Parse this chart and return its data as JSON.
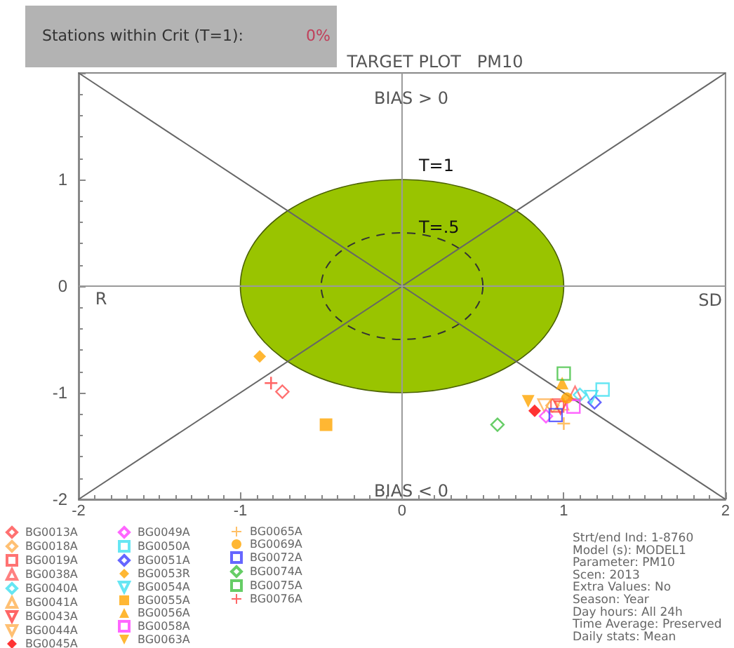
{
  "chart_data": {
    "type": "scatter",
    "title": "TARGET PLOT   PM10",
    "xlim": [
      -2,
      2
    ],
    "xticks": [
      -2,
      -1,
      0,
      1,
      2
    ],
    "ylim": [
      -2,
      2
    ],
    "yticks": [
      -2,
      -1,
      0,
      1,
      {
        "value": 2,
        "label": null
      }
    ],
    "grid": false,
    "legend": "bottom left",
    "annotations": [
      "Stations within Crit (T=1):",
      "0%",
      "BIAS > 0",
      "BIAS < 0",
      "R",
      "SD",
      {
        "text": "T=1",
        "x": 0,
        "y": 1
      },
      {
        "text": "T=.5",
        "x": 0,
        "y": 0.5
      },
      "Strt/end Ind: 1-8760",
      "Model (s): MODEL1",
      "Parameter: PM10",
      "Scen: 2013",
      "Extra Values: No",
      "Season: Year",
      "Day hours: All 24h",
      "Time Average: Preserved",
      "Daily stats: Mean"
    ],
    "series": [
      {
        "type": "line",
        "color": "#666666",
        "marker": "none",
        "x": [
          -2,
          2
        ],
        "values": [
          -2,
          2
        ]
      },
      {
        "type": "line",
        "color": "#666666",
        "marker": "none",
        "x": [
          -2,
          2
        ],
        "values": [
          2,
          -2
        ]
      },
      {
        "type": "line",
        "color": "#9a9a9a",
        "marker": "none",
        "x": [
          0,
          0
        ],
        "values": [
          -2,
          2
        ]
      },
      {
        "type": "line",
        "color": "#9a9a9a",
        "marker": "none",
        "x": [
          -2,
          2
        ],
        "values": [
          0,
          0
        ]
      },
      {
        "name": "BG0013A",
        "color": "#ff4d4d",
        "marker": "diamond",
        "x": [
          -0.74
        ],
        "values": [
          -0.99
        ]
      },
      {
        "name": "BG0018A",
        "color": "#ffb050",
        "marker": "diamond",
        "x": [
          0.93
        ],
        "values": [
          -1.12
        ]
      },
      {
        "name": "BG0019A",
        "color": "#ff5050",
        "marker": "square",
        "x": [
          0.96
        ],
        "values": [
          -1.12
        ]
      },
      {
        "name": "BG0038A",
        "color": "#ff6060",
        "marker": "triangle",
        "x": [
          1.07
        ],
        "values": [
          -1.0
        ]
      },
      {
        "name": "BG0040A",
        "color": "#40e0f0",
        "marker": "diamond",
        "x": [
          1.1
        ],
        "values": [
          -1.02
        ]
      },
      {
        "name": "BG0041A",
        "color": "#ffb050",
        "marker": "triangle",
        "x": [
          0.99
        ],
        "values": [
          -1.1
        ]
      },
      {
        "name": "BG0043A",
        "color": "#ff4040",
        "marker": "triangle-down",
        "x": [
          0.98
        ],
        "values": [
          -1.14
        ]
      },
      {
        "name": "BG0044A",
        "color": "#ffb050",
        "marker": "triangle-down",
        "x": [
          0.88
        ],
        "values": [
          -1.12
        ]
      },
      {
        "name": "BG0045A",
        "color": "#ff0000",
        "marker": "diamond-filled",
        "x": [
          0.82
        ],
        "values": [
          -1.17
        ]
      },
      {
        "name": "BG0049A",
        "color": "#ff40ff",
        "marker": "diamond",
        "x": [
          0.89
        ],
        "values": [
          -1.22
        ]
      },
      {
        "name": "BG0050A",
        "color": "#40e0f0",
        "marker": "square",
        "x": [
          1.24
        ],
        "values": [
          -0.97
        ]
      },
      {
        "name": "BG0051A",
        "color": "#4040ff",
        "marker": "diamond",
        "x": [
          1.19
        ],
        "values": [
          -1.09
        ]
      },
      {
        "name": "BG0053R",
        "color": "#ffa500",
        "marker": "diamond-filled",
        "x": [
          -0.88
        ],
        "values": [
          -0.66
        ]
      },
      {
        "name": "BG0054A",
        "color": "#40e0f0",
        "marker": "triangle-down",
        "x": [
          1.17
        ],
        "values": [
          -1.04
        ]
      },
      {
        "name": "BG0055A",
        "color": "#ffa500",
        "marker": "square-filled",
        "x": [
          -0.47
        ],
        "values": [
          -1.3
        ]
      },
      {
        "name": "BG0056A",
        "color": "#ffa500",
        "marker": "triangle-filled",
        "x": [
          0.99
        ],
        "values": [
          -0.91
        ]
      },
      {
        "name": "BG0058A",
        "color": "#ff40ff",
        "marker": "square",
        "x": [
          1.06
        ],
        "values": [
          -1.13
        ]
      },
      {
        "name": "BG0063A",
        "color": "#ffa500",
        "marker": "triangle-down-filled",
        "x": [
          0.78
        ],
        "values": [
          -1.08
        ]
      },
      {
        "name": "BG0065A",
        "color": "#ffb040",
        "marker": "cross",
        "x": [
          1.0
        ],
        "values": [
          -1.29
        ]
      },
      {
        "name": "BG0069A",
        "color": "#ffa500",
        "marker": "circle-filled",
        "x": [
          1.02
        ],
        "values": [
          -1.05
        ]
      },
      {
        "name": "BG0072A",
        "color": "#4040ff",
        "marker": "square",
        "x": [
          0.95
        ],
        "values": [
          -1.21
        ]
      },
      {
        "name": "BG0074A",
        "color": "#40c040",
        "marker": "diamond",
        "x": [
          0.59
        ],
        "values": [
          -1.3
        ]
      },
      {
        "name": "BG0075A",
        "color": "#40c040",
        "marker": "square",
        "x": [
          1.0
        ],
        "values": [
          -0.82
        ]
      },
      {
        "name": "BG0076A",
        "color": "#ff4040",
        "marker": "cross",
        "x": [
          -0.81
        ],
        "values": [
          -0.91
        ]
      }
    ]
  }
}
